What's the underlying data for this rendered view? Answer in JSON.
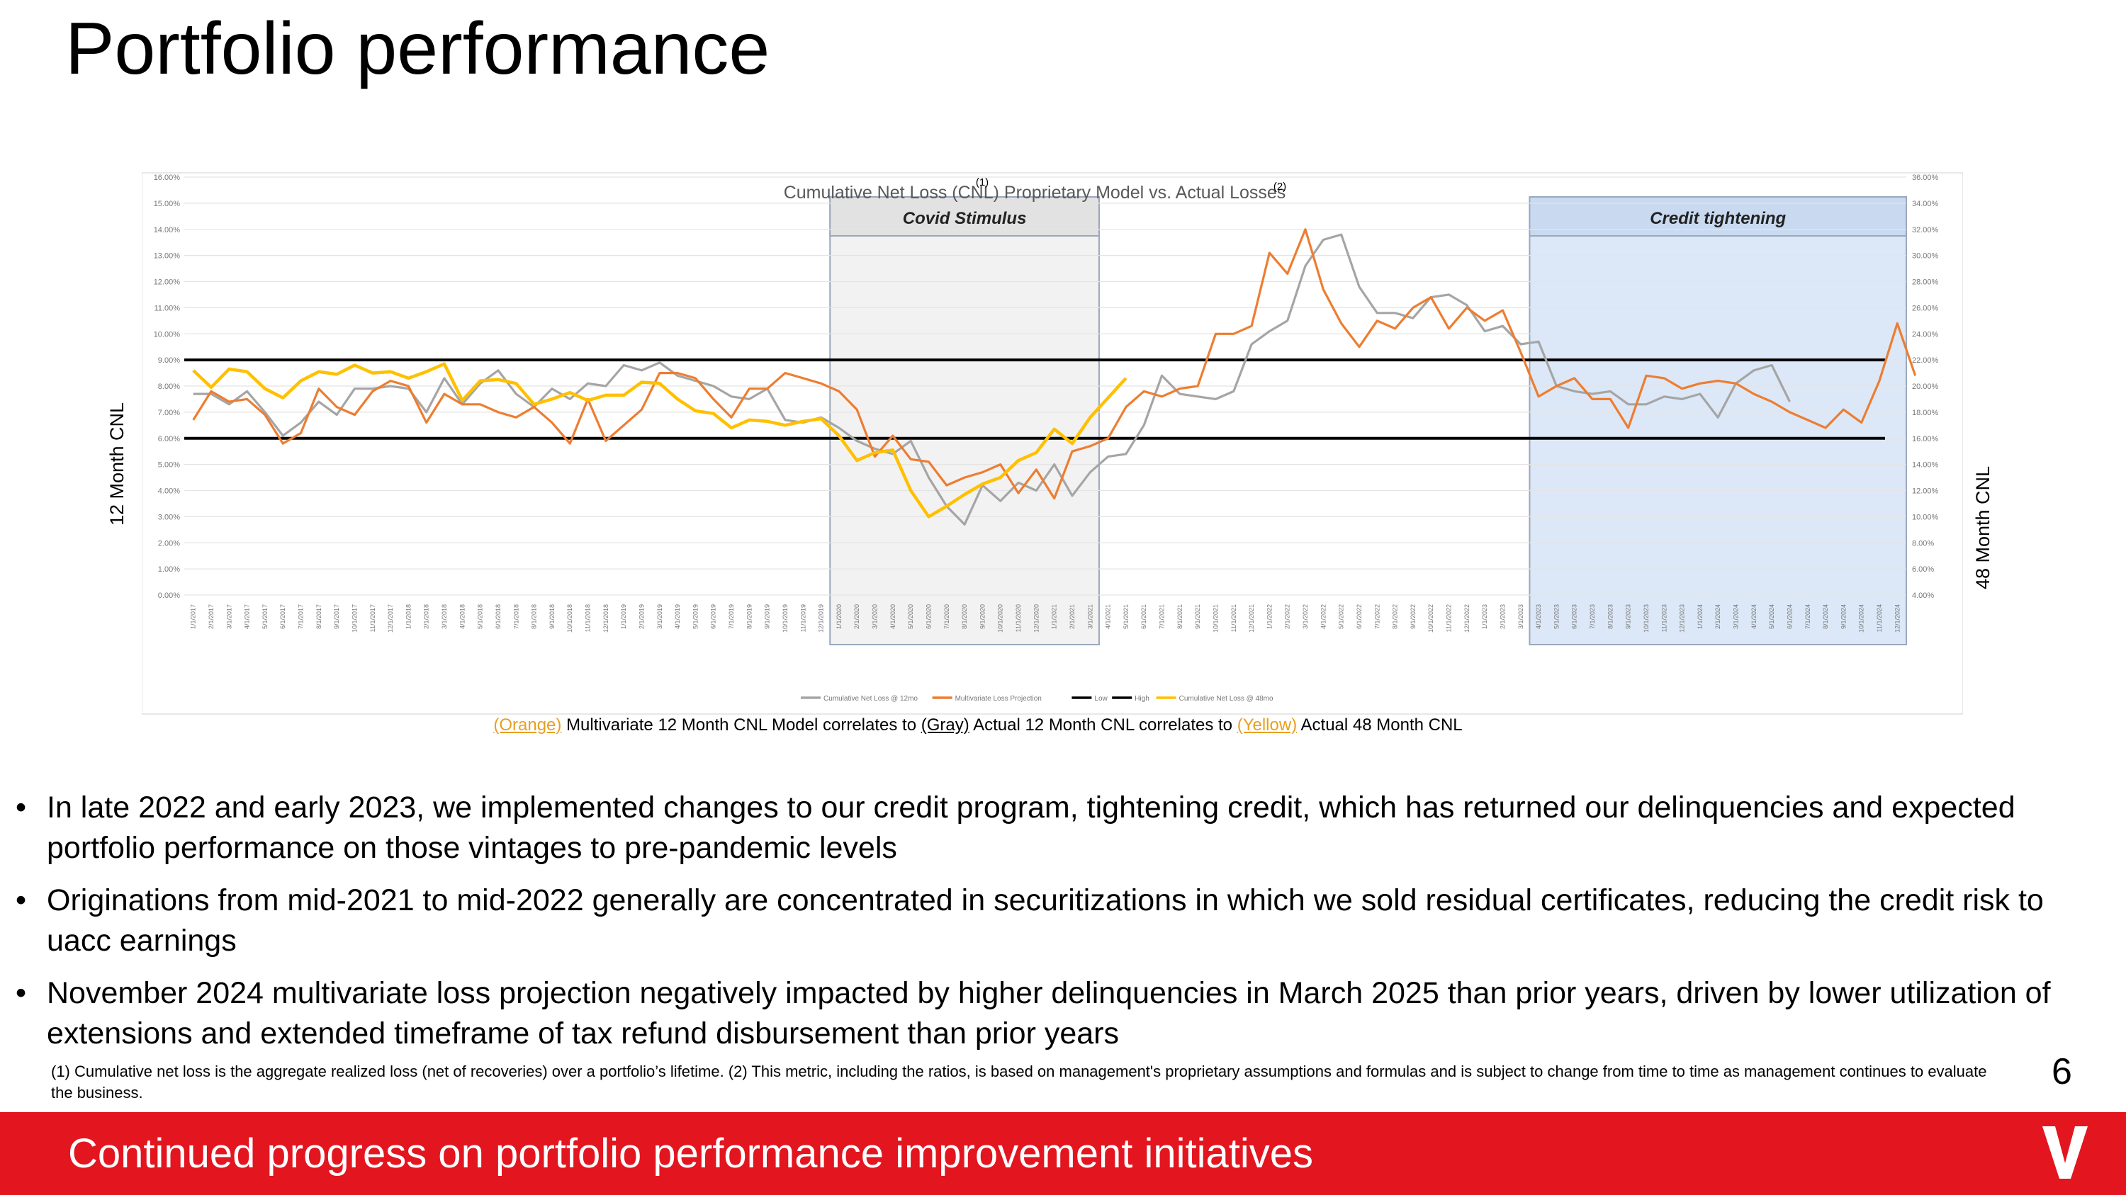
{
  "page": {
    "title": "Portfolio performance",
    "page_number": "6"
  },
  "chart_data": {
    "type": "line",
    "title": "Cumulative Net Loss (CNL) Proprietary Model vs. Actual Losses",
    "title_sup_1": "(1)",
    "title_sup_2": "(2)",
    "y_left_label": "12 Month CNL",
    "y_right_label": "48 Month CNL",
    "y_left_ticks": [
      "16.00%",
      "15.00%",
      "14.00%",
      "13.00%",
      "12.00%",
      "11.00%",
      "10.00%",
      "9.00%",
      "8.00%",
      "7.00%",
      "6.00%",
      "5.00%",
      "4.00%",
      "3.00%",
      "2.00%",
      "1.00%",
      "0.00%"
    ],
    "y_right_ticks": [
      "36.00%",
      "34.00%",
      "32.00%",
      "30.00%",
      "28.00%",
      "26.00%",
      "24.00%",
      "22.00%",
      "20.00%",
      "18.00%",
      "16.00%",
      "14.00%",
      "12.00%",
      "10.00%",
      "8.00%",
      "6.00%",
      "4.00%"
    ],
    "ylim_left": [
      0,
      16
    ],
    "ylim_right": [
      4,
      36
    ],
    "x_start": "1/1/2017",
    "x_end": "12/1/2024",
    "x_tick_step_months": 1,
    "bands": [
      {
        "label": "Covid Stimulus",
        "from_index": 36,
        "to_index": 50,
        "color": "#F2F2F2"
      },
      {
        "label": "Credit tightening",
        "from_index": 75,
        "to_index": 95,
        "color": "#DCE8F7"
      }
    ],
    "reference_lines": [
      {
        "name": "Low",
        "value": 6.0
      },
      {
        "name": "High",
        "value": 9.0
      }
    ],
    "series": [
      {
        "name": "Cumulative Net Loss @ 12mo",
        "color": "#A5A5A5",
        "axis": "left",
        "start_index": 0,
        "values": [
          7.7,
          7.7,
          7.3,
          7.8,
          7.0,
          6.1,
          6.6,
          7.4,
          6.9,
          7.9,
          7.9,
          8.0,
          7.9,
          7.0,
          8.3,
          7.3,
          8.1,
          8.6,
          7.7,
          7.2,
          7.9,
          7.5,
          8.1,
          8.0,
          8.8,
          8.6,
          8.9,
          8.4,
          8.2,
          8.0,
          7.6,
          7.5,
          7.9,
          6.7,
          6.6,
          6.8,
          6.4,
          5.9,
          5.6,
          5.4,
          5.9,
          4.5,
          3.4,
          2.7,
          4.2,
          3.6,
          4.3,
          4.0,
          5.0,
          3.8,
          4.7,
          5.3,
          5.4,
          6.5,
          8.4,
          7.7,
          7.6,
          7.5,
          7.8,
          9.6,
          10.1,
          10.5,
          12.6,
          13.6,
          13.8,
          11.8,
          10.8,
          10.8,
          10.6,
          11.4,
          11.5,
          11.1,
          10.1,
          10.3,
          9.6,
          9.7,
          8.0,
          7.8,
          7.7,
          7.8,
          7.3,
          7.3,
          7.6,
          7.5,
          7.7,
          6.8,
          8.1,
          8.6,
          8.8,
          7.4
        ]
      },
      {
        "name": "Multivariate Loss Projection",
        "color": "#ED7D31",
        "axis": "left",
        "start_index": 0,
        "values": [
          6.7,
          7.8,
          7.4,
          7.5,
          6.9,
          5.8,
          6.2,
          7.9,
          7.2,
          6.9,
          7.8,
          8.2,
          8.0,
          6.6,
          7.7,
          7.3,
          7.3,
          7.0,
          6.8,
          7.2,
          6.6,
          5.8,
          7.5,
          5.9,
          6.5,
          7.1,
          8.5,
          8.5,
          8.3,
          7.5,
          6.8,
          7.9,
          7.9,
          8.5,
          8.3,
          8.1,
          7.8,
          7.1,
          5.3,
          6.1,
          5.2,
          5.1,
          4.2,
          4.5,
          4.7,
          5.0,
          3.9,
          4.8,
          3.7,
          5.5,
          5.7,
          6.0,
          7.2,
          7.8,
          7.6,
          7.9,
          8.0,
          10.0,
          10.0,
          10.3,
          13.1,
          12.3,
          14.0,
          11.7,
          10.4,
          9.5,
          10.5,
          10.2,
          11.0,
          11.4,
          10.2,
          11.0,
          10.5,
          10.9,
          9.3,
          7.6,
          8.0,
          8.3,
          7.5,
          7.5,
          6.4,
          8.4,
          8.3,
          7.9,
          8.1,
          8.2,
          8.1,
          7.7,
          7.4,
          7.0,
          6.7,
          6.4,
          7.1,
          6.6,
          8.2,
          10.4,
          8.4
        ]
      },
      {
        "name": "Cumulative Net Loss @ 48mo",
        "color": "#FFC000",
        "axis": "right",
        "start_index": 0,
        "values": [
          21.2,
          19.9,
          21.3,
          21.1,
          19.8,
          19.1,
          20.4,
          21.1,
          20.9,
          21.6,
          21.0,
          21.1,
          20.6,
          21.1,
          21.7,
          18.9,
          20.4,
          20.5,
          20.2,
          18.6,
          19.0,
          19.5,
          18.9,
          19.3,
          19.3,
          20.3,
          20.2,
          19.0,
          18.1,
          17.9,
          16.8,
          17.4,
          17.3,
          17.0,
          17.3,
          17.5,
          16.2,
          14.3,
          14.9,
          15.1,
          12.0,
          10.0,
          10.8,
          11.7,
          12.5,
          13.0,
          14.3,
          14.9,
          16.7,
          15.6,
          17.6,
          19.1,
          20.6
        ]
      }
    ],
    "legend": [
      "Cumulative Net Loss @ 12mo",
      "Multivariate Loss Projection",
      "Low",
      "High",
      "Cumulative Net Loss @ 48mo"
    ],
    "legend_position": "bottom",
    "caption": {
      "orange_tag": "(Orange)",
      "orange_text": "Multivariate 12 Month CNL Model correlates to",
      "gray_tag": "(Gray)",
      "gray_text": "Actual 12 Month CNL correlates to",
      "yellow_tag": "(Yellow)",
      "yellow_text": "Actual 48 Month CNL"
    }
  },
  "bullets": [
    "In late 2022 and early 2023, we implemented changes to our credit program, tightening credit, which has returned our delinquencies and expected portfolio performance on those vintages to pre-pandemic levels",
    "Originations from mid-2021 to mid-2022 generally are concentrated in securitizations in which we sold residual certificates, reducing the credit risk to uacc earnings",
    "November 2024 multivariate loss projection negatively impacted by higher delinquencies in March 2025 than prior years, driven by lower utilization of extensions  and extended timeframe of tax refund disbursement than prior years"
  ],
  "bullet_marker": "•",
  "footnote": "(1) Cumulative net loss is the aggregate realized loss (net of recoveries) over a portfolio’s lifetime. (2) This metric, including the ratios, is based on management's proprietary assumptions and formulas and is subject to change from time to time as management continues to evaluate the business.",
  "footer": {
    "text": "Continued progress on portfolio performance improvement initiatives",
    "logo_icon": "v-logo-icon",
    "bg_color": "#E3151F"
  }
}
